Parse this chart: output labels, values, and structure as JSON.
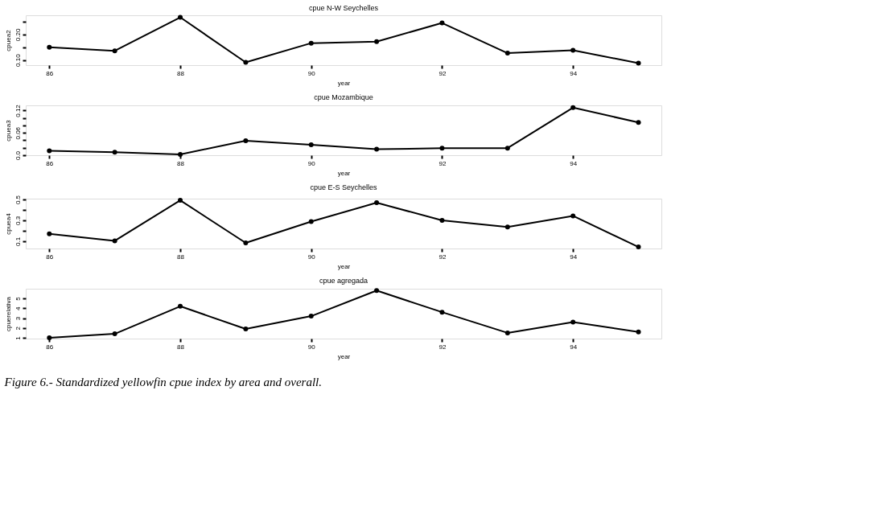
{
  "chart_data": [
    {
      "type": "line",
      "title": "cpue N-W Seychelles",
      "xlabel": "year",
      "ylabel": "cpuea2",
      "x": [
        86,
        87,
        88,
        89,
        90,
        91,
        92,
        93,
        94,
        95
      ],
      "series": [
        {
          "color": "#000000",
          "values": [
            0.15,
            0.136,
            0.267,
            0.091,
            0.166,
            0.172,
            0.245,
            0.127,
            0.138,
            0.088
          ]
        }
      ],
      "xlim": [
        85.64,
        95.35
      ],
      "xticks": [
        86,
        88,
        90,
        92,
        94
      ],
      "ylim": [
        0.08,
        0.275
      ],
      "yticks": [
        {
          "value": 0.1,
          "label": "0.10"
        },
        {
          "value": 0.15,
          "label": null
        },
        {
          "value": 0.2,
          "label": "0.20"
        },
        {
          "value": 0.25,
          "label": null
        }
      ],
      "grid": false,
      "marker": "circle",
      "line_style": "solid"
    },
    {
      "type": "line",
      "title": "cpue Mozambique",
      "xlabel": "year",
      "ylabel": "cpuea3",
      "x": [
        86,
        87,
        88,
        89,
        90,
        91,
        92,
        93,
        94,
        95
      ],
      "series": [
        {
          "color": "#000000",
          "values": [
            0.012,
            0.008,
            0.002,
            0.039,
            0.028,
            0.016,
            0.019,
            0.019,
            0.128,
            0.088
          ]
        }
      ],
      "xlim": [
        85.64,
        95.35
      ],
      "xticks": [
        86,
        88,
        90,
        92,
        94
      ],
      "ylim": [
        0,
        0.134
      ],
      "yticks": [
        {
          "value": 0,
          "label": "0.0"
        },
        {
          "value": 0.02,
          "label": null
        },
        {
          "value": 0.04,
          "label": null
        },
        0.06,
        {
          "value": 0.08,
          "label": null
        },
        {
          "value": 0.1,
          "label": null
        },
        0.12
      ],
      "grid": false,
      "marker": "circle",
      "line_style": "solid"
    },
    {
      "type": "line",
      "title": "cpue E-S Seychelles",
      "xlabel": "year",
      "ylabel": "cpuea4",
      "x": [
        86,
        87,
        88,
        89,
        90,
        91,
        92,
        93,
        94,
        95
      ],
      "series": [
        {
          "color": "#000000",
          "values": [
            0.171,
            0.104,
            0.492,
            0.084,
            0.288,
            0.469,
            0.3,
            0.237,
            0.343,
            0.045
          ]
        }
      ],
      "xlim": [
        85.64,
        95.35
      ],
      "xticks": [
        86,
        88,
        90,
        92,
        94
      ],
      "ylim": [
        0.03,
        0.508
      ],
      "yticks": [
        0.1,
        {
          "value": 0.2,
          "label": null
        },
        0.3,
        {
          "value": 0.4,
          "label": null
        },
        0.5
      ],
      "grid": false,
      "marker": "circle",
      "line_style": "solid"
    },
    {
      "type": "line",
      "title": "cpue agregada",
      "xlabel": "year",
      "ylabel": "cpuerelativa",
      "x": [
        86,
        87,
        88,
        89,
        90,
        91,
        92,
        93,
        94,
        95
      ],
      "series": [
        {
          "color": "#000000",
          "values": [
            1.0,
            1.4,
            4.2,
            1.9,
            3.2,
            5.8,
            3.6,
            1.5,
            2.6,
            1.6
          ]
        }
      ],
      "xlim": [
        85.64,
        95.35
      ],
      "xticks": [
        86,
        88,
        90,
        92,
        94
      ],
      "ylim": [
        0.92,
        5.98
      ],
      "yticks": [
        1,
        2,
        3,
        4,
        5
      ],
      "grid": false,
      "marker": "circle",
      "line_style": "solid",
      "annotations": [
        "Figure 6.- Standardized yellowfin cpue index by area and overall."
      ]
    }
  ]
}
